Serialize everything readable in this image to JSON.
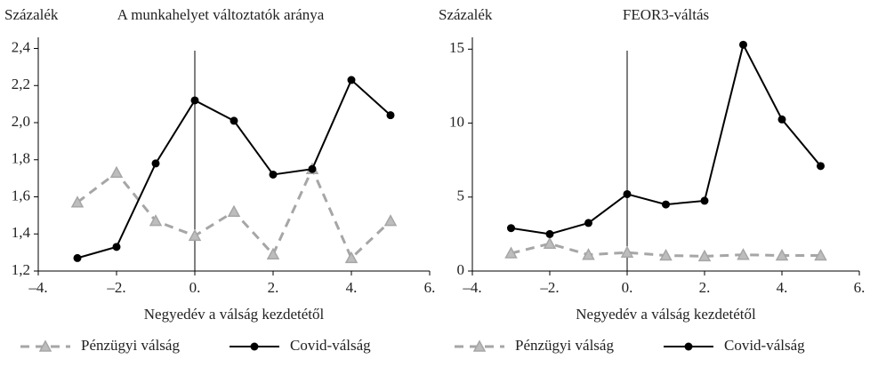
{
  "chart_data": [
    {
      "type": "line",
      "title": "A munkahelyet változtatók aránya",
      "ylabel": "Százalék",
      "xlabel": "Negyedév a válság kezdetétől",
      "x": [
        -3,
        -2,
        -1,
        0,
        1,
        2,
        3,
        4,
        5
      ],
      "series": [
        {
          "name": "Pénzügyi válság",
          "color": "#a6a6a6",
          "dash": true,
          "marker": "triangle",
          "values": [
            1.57,
            1.73,
            1.47,
            1.39,
            1.52,
            1.29,
            1.75,
            1.27,
            1.47
          ]
        },
        {
          "name": "Covid-válság",
          "color": "#000000",
          "dash": false,
          "marker": "circle",
          "values": [
            1.27,
            1.33,
            1.78,
            2.12,
            2.01,
            1.72,
            1.75,
            2.23,
            2.04
          ]
        }
      ],
      "xlim": [
        -4,
        6
      ],
      "xticks": [
        {
          "value": -4,
          "label": "–4."
        },
        {
          "value": -2,
          "label": "–2."
        },
        {
          "value": 0,
          "label": "0."
        },
        {
          "value": 2,
          "label": "2."
        },
        {
          "value": 4,
          "label": "4."
        },
        {
          "value": 6,
          "label": "6."
        }
      ],
      "ylim": [
        1.2,
        2.46
      ],
      "yticks": [
        {
          "value": 1.2,
          "label": "1,2"
        },
        {
          "value": 1.4,
          "label": "1,4"
        },
        {
          "value": 1.6,
          "label": "1,6"
        },
        {
          "value": 1.8,
          "label": "1,8"
        },
        {
          "value": 2.0,
          "label": "2,0"
        },
        {
          "value": 2.2,
          "label": "2,2"
        },
        {
          "value": 2.4,
          "label": "2,4"
        }
      ],
      "vline": 0,
      "grid": false
    },
    {
      "type": "line",
      "title": "FEOR3-váltás",
      "ylabel": "Százalék",
      "xlabel": "Negyedév a válság kezdetétől",
      "x": [
        -3,
        -2,
        -1,
        0,
        1,
        2,
        3,
        4,
        5
      ],
      "series": [
        {
          "name": "Pénzügyi válság",
          "color": "#a6a6a6",
          "dash": true,
          "marker": "triangle",
          "values": [
            1.2,
            1.85,
            1.1,
            1.25,
            1.05,
            1.0,
            1.1,
            1.05,
            1.05
          ]
        },
        {
          "name": "Covid-válság",
          "color": "#000000",
          "dash": false,
          "marker": "circle",
          "values": [
            2.9,
            2.5,
            3.25,
            5.2,
            4.5,
            4.75,
            15.3,
            10.25,
            7.1
          ]
        }
      ],
      "xlim": [
        -4,
        6
      ],
      "xticks": [
        {
          "value": -4,
          "label": "–4."
        },
        {
          "value": -2,
          "label": "–2."
        },
        {
          "value": 0,
          "label": "0."
        },
        {
          "value": 2,
          "label": "2."
        },
        {
          "value": 4,
          "label": "4."
        },
        {
          "value": 6,
          "label": "6."
        }
      ],
      "ylim": [
        0,
        15.8
      ],
      "yticks": [
        0,
        5,
        10,
        15
      ],
      "vline": 0,
      "grid": false
    }
  ]
}
